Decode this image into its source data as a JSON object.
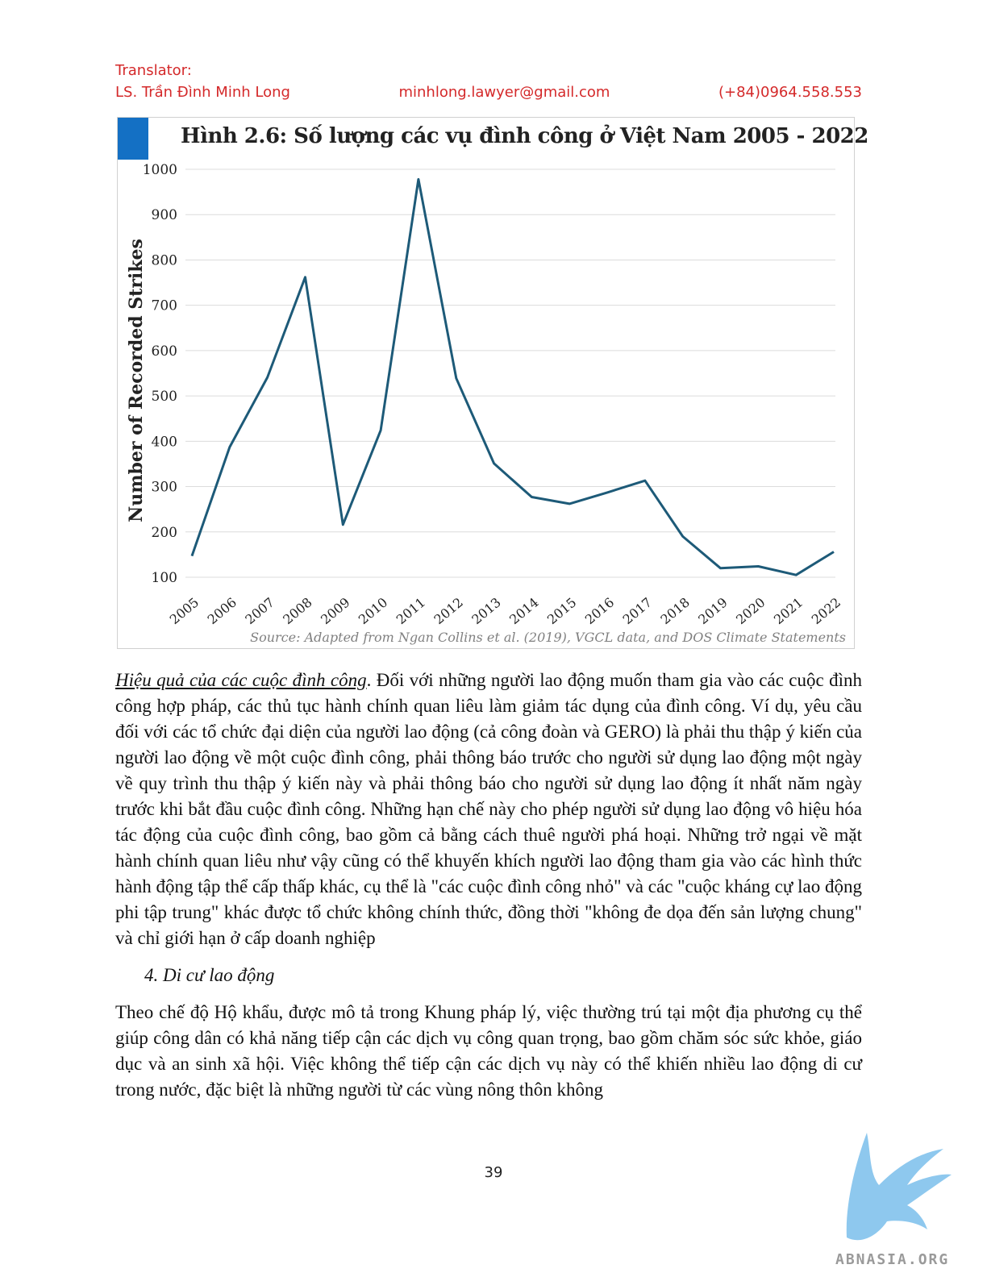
{
  "header": {
    "label": "Translator:",
    "name": "LS. Trần Đình Minh Long",
    "email": "minhlong.lawyer@gmail.com",
    "phone": "(+84)0964.558.553"
  },
  "figure": {
    "source": "Source: Adapted from Ngan Collins et al. (2019),  VGCL data, and DOS Climate Statements"
  },
  "chart_data": {
    "type": "line",
    "title": "Hình 2.6: Số lượng các vụ đình công ở Việt Nam 2005 - 2022",
    "xlabel": "",
    "ylabel": "Number of Recorded Strikes",
    "ylim": [
      100,
      1000
    ],
    "yticks": [
      1000,
      900,
      800,
      700,
      600,
      500,
      400,
      300,
      200,
      100
    ],
    "grid": true,
    "line_color": "#1d5a78",
    "x": [
      "2005",
      "2006",
      "2007",
      "2008",
      "2009",
      "2010",
      "2011",
      "2012",
      "2013",
      "2014",
      "2015",
      "2016",
      "2017",
      "2018",
      "2019",
      "2020",
      "2021",
      "2022"
    ],
    "values": [
      147,
      387,
      541,
      762,
      216,
      424,
      978,
      539,
      351,
      277,
      262,
      287,
      313,
      190,
      120,
      124,
      105,
      156
    ]
  },
  "body": {
    "para1_lead": "Hiệu quả của các cuộc đình công",
    "para1_rest": ". Đối với những người lao động muốn tham gia vào các cuộc đình công hợp pháp, các thủ tục hành chính quan liêu làm giảm tác dụng của đình công. Ví dụ, yêu cầu đối với các tổ chức đại diện của người lao động (cả công đoàn và GERO) là phải thu thập ý kiến của người lao động về một cuộc đình công, phải thông báo trước cho người sử dụng lao động một ngày về quy trình thu thập ý kiến này và phải thông báo cho người sử dụng lao động ít nhất năm ngày trước khi bắt đầu cuộc đình công. Những hạn chế này cho phép người sử dụng lao động vô hiệu hóa tác động của cuộc đình công, bao gồm cả bằng cách thuê người phá hoại. Những trở ngại về mặt hành chính quan liêu như vậy cũng có thể khuyến khích người lao động tham gia vào các hình thức hành động tập thể cấp thấp khác, cụ thể là \"các cuộc đình công nhỏ\" và các \"cuộc kháng cự lao động phi tập trung\" khác được tổ chức không chính thức, đồng thời \"không đe dọa đến sản lượng chung\" và chỉ giới hạn ở cấp doanh nghiệp",
    "section_heading": "4.  Di cư lao động",
    "para2": "Theo chế độ Hộ khẩu, được mô tả trong Khung pháp lý, việc thường trú tại một địa phương cụ thể giúp công dân có khả năng tiếp cận các dịch vụ công quan trọng, bao gồm chăm sóc sức khỏe, giáo dục và an sinh xã hội. Việc không thể tiếp cận các dịch vụ này có thể khiến nhiều lao động di cư trong nước, đặc biệt là những người từ các vùng nông thôn không"
  },
  "footer": {
    "page_number": "39",
    "logo_text": "ABNASIA.ORG",
    "logo_color": "#8ec8ee"
  }
}
